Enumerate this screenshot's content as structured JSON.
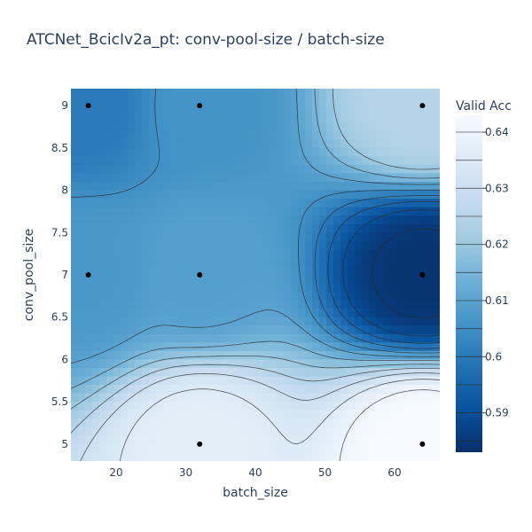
{
  "chart_data": {
    "type": "contour",
    "title": "ATCNet_BcicIv2a_pt: conv-pool-size / batch-size",
    "xlabel": "batch_size",
    "ylabel": "conv_pool_size",
    "colorbar_title": "Valid Acc",
    "xlim": [
      13.5,
      66.5
    ],
    "ylim": [
      4.8,
      9.2
    ],
    "x_ticks": [
      20,
      30,
      40,
      50,
      60
    ],
    "y_ticks": [
      5,
      5.5,
      6,
      6.5,
      7,
      7.5,
      8,
      8.5,
      9
    ],
    "x_tick_labels": [
      "20",
      "30",
      "40",
      "50",
      "60"
    ],
    "y_tick_labels": [
      "5",
      "5.5",
      "6",
      "6.5",
      "7",
      "7.5",
      "8",
      "8.5",
      "9"
    ],
    "z_range": [
      0.583,
      0.643
    ],
    "colorbar_ticks": [
      0.59,
      0.6,
      0.61,
      0.62,
      0.63,
      0.64
    ],
    "colorbar_tick_labels": [
      "0.59",
      "0.6",
      "0.61",
      "0.62",
      "0.63",
      "0.64"
    ],
    "colorscale": [
      "#08306b",
      "#08519c",
      "#2171b5",
      "#4292c6",
      "#6baed6",
      "#9ecae1",
      "#c6dbef",
      "#deebf7",
      "#f7fbff"
    ],
    "points": [
      {
        "x": 16,
        "y": 9,
        "z": 0.6
      },
      {
        "x": 32,
        "y": 9,
        "z": 0.606
      },
      {
        "x": 64,
        "y": 9,
        "z": 0.625
      },
      {
        "x": 16,
        "y": 7,
        "z": 0.607
      },
      {
        "x": 32,
        "y": 7,
        "z": 0.609
      },
      {
        "x": 64,
        "y": 7,
        "z": 0.584
      },
      {
        "x": 32,
        "y": 5,
        "z": 0.637
      },
      {
        "x": 64,
        "y": 5,
        "z": 0.643
      }
    ],
    "grid": false
  }
}
